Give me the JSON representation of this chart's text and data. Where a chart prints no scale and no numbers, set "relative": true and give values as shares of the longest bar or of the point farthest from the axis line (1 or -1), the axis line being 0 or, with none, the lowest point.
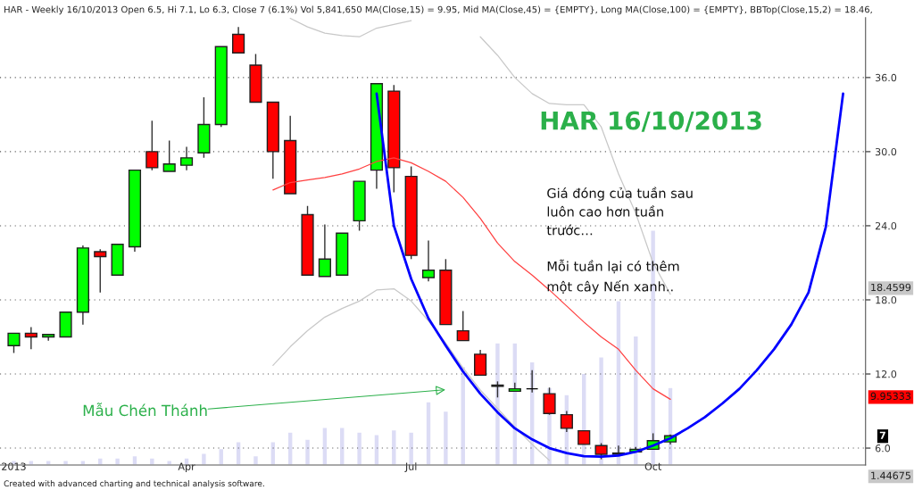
{
  "chart_data": [
    {
      "type": "candlestick",
      "title": "HAR - Weekly 16/10/2013 Open 6.5, Hi 7.1, Lo 6.3, Close 7 (6.1%) Vol 5,841,650 MA(Close,15) = 9.95, Mid MA(Close,45) = {EMPTY}, Long MA(Close,100) = {EMPTY}, BBTop(Close,15,2) = 18.46,",
      "categories": [
        "2013",
        null,
        null,
        null,
        null,
        null,
        null,
        null,
        null,
        null,
        "Apr",
        null,
        null,
        null,
        null,
        null,
        null,
        null,
        null,
        null,
        null,
        null,
        null,
        "Jul",
        null,
        null,
        null,
        null,
        null,
        null,
        null,
        null,
        null,
        null,
        null,
        null,
        null,
        "Oct",
        null,
        null,
        null,
        null,
        null,
        null,
        null,
        null,
        null,
        null,
        null
      ],
      "ohlc": [
        [
          14.3,
          15.3,
          13.7,
          15.3
        ],
        [
          15.3,
          15.8,
          14.0,
          15.0
        ],
        [
          15.0,
          15.2,
          14.7,
          15.2
        ],
        [
          15.0,
          17.0,
          15.0,
          17.0
        ],
        [
          17.0,
          22.4,
          16.0,
          22.2
        ],
        [
          21.9,
          22.1,
          18.6,
          21.5
        ],
        [
          20.0,
          22.5,
          20.0,
          22.5
        ],
        [
          22.3,
          28.5,
          21.9,
          28.5
        ],
        [
          30.0,
          32.5,
          28.5,
          28.7
        ],
        [
          28.4,
          30.9,
          28.4,
          29.0
        ],
        [
          28.9,
          30.4,
          28.5,
          29.5
        ],
        [
          29.9,
          34.4,
          29.5,
          32.2
        ],
        [
          32.2,
          38.5,
          32.0,
          38.5
        ],
        [
          39.5,
          40.1,
          38.0,
          38.0
        ],
        [
          37.0,
          37.9,
          34.0,
          34.0
        ],
        [
          34.0,
          34.0,
          27.8,
          30.0
        ],
        [
          30.9,
          32.9,
          26.6,
          26.6
        ],
        [
          24.9,
          25.6,
          20.0,
          20.0
        ],
        [
          19.9,
          24.1,
          19.9,
          21.3
        ],
        [
          20.0,
          23.4,
          20.0,
          23.4
        ],
        [
          24.4,
          27.6,
          23.6,
          27.6
        ],
        [
          28.5,
          35.5,
          27.0,
          35.5
        ],
        [
          34.9,
          35.4,
          26.7,
          28.7
        ],
        [
          28.0,
          28.8,
          21.3,
          21.6
        ],
        [
          19.8,
          22.8,
          19.5,
          20.4
        ],
        [
          20.4,
          21.3,
          16.0,
          16.0
        ],
        [
          15.5,
          17.1,
          14.7,
          14.7
        ],
        [
          13.6,
          13.95,
          11.9,
          11.9
        ],
        [
          11.1,
          11.4,
          10.1,
          11.0
        ],
        [
          10.6,
          11.3,
          10.6,
          10.8
        ],
        [
          10.8,
          12.3,
          10.5,
          10.8
        ],
        [
          10.4,
          10.9,
          8.7,
          8.8
        ],
        [
          8.7,
          9.0,
          7.3,
          7.6
        ],
        [
          7.4,
          7.4,
          6.3,
          6.3
        ],
        [
          6.2,
          6.4,
          5.1,
          5.5
        ],
        [
          5.5,
          6.2,
          5.5,
          5.6
        ],
        [
          5.7,
          6.1,
          5.7,
          5.9
        ],
        [
          5.9,
          7.2,
          5.9,
          6.6
        ],
        [
          6.5,
          7.1,
          6.3,
          7.0
        ],
        null,
        null,
        null,
        null,
        null,
        null,
        null,
        null,
        null,
        null
      ],
      "colors": [
        "#00ff00",
        "#ff0000",
        "#00ff00",
        "#00ff00",
        "#00ff00",
        "#ff0000",
        "#00ff00",
        "#00ff00",
        "#ff0000",
        "#00ff00",
        "#00ff00",
        "#00ff00",
        "#00ff00",
        "#ff0000",
        "#ff0000",
        "#ff0000",
        "#ff0000",
        "#ff0000",
        "#00ff00",
        "#00ff00",
        "#00ff00",
        "#00ff00",
        "#ff0000",
        "#ff0000",
        "#00ff00",
        "#ff0000",
        "#ff0000",
        "#ff0000",
        "#ff0000",
        "#00ff00",
        "#000000",
        "#ff0000",
        "#ff0000",
        "#ff0000",
        "#ff0000",
        "#00ff00",
        "#00ff00",
        "#00ff00",
        "#00ff00",
        null,
        null,
        null,
        null,
        null,
        null,
        null,
        null,
        null,
        null
      ],
      "series": [
        {
          "type": "line",
          "color": "#c8c8c8",
          "values": [
            null,
            null,
            null,
            null,
            null,
            null,
            null,
            null,
            null,
            null,
            null,
            null,
            null,
            null,
            null,
            null,
            40.8,
            40.1,
            39.6,
            39.4,
            39.3,
            40.0,
            40.3,
            40.6,
            null,
            null,
            null,
            39.3,
            37.8,
            36.0,
            34.7,
            33.9,
            33.8,
            33.8,
            32.0,
            28.2,
            25.0,
            21.0,
            18.46,
            null,
            null,
            null,
            null,
            null,
            null,
            null,
            null,
            null,
            null
          ]
        },
        {
          "type": "line",
          "color": "#c8c8c8",
          "values": [
            null,
            null,
            null,
            null,
            null,
            null,
            null,
            null,
            null,
            null,
            null,
            null,
            null,
            null,
            null,
            12.7,
            14.2,
            15.5,
            16.6,
            17.3,
            17.9,
            18.8,
            18.9,
            17.9,
            16.3,
            14.5,
            12.5,
            10.7,
            9.2,
            7.7,
            6.3,
            5.0,
            null,
            null,
            null,
            null,
            null,
            null,
            null,
            null,
            null,
            null,
            null,
            null,
            null,
            null,
            null,
            null,
            null
          ]
        },
        {
          "type": "line",
          "color": "#ff4040",
          "values": [
            null,
            null,
            null,
            null,
            null,
            null,
            null,
            null,
            null,
            null,
            null,
            null,
            null,
            null,
            null,
            26.9,
            27.5,
            27.7,
            27.9,
            28.2,
            28.6,
            29.2,
            29.5,
            29.1,
            28.4,
            27.6,
            26.3,
            24.6,
            22.6,
            21.1,
            20.0,
            18.8,
            17.5,
            16.2,
            15.0,
            14.0,
            12.3,
            10.8,
            9.95,
            null,
            null,
            null,
            null,
            null,
            null,
            null,
            null,
            null,
            null
          ]
        },
        {
          "type": "line",
          "color": "#0000ff",
          "values": [
            null,
            null,
            null,
            null,
            null,
            null,
            null,
            null,
            null,
            null,
            null,
            null,
            null,
            null,
            null,
            null,
            null,
            null,
            null,
            null,
            null,
            34.7,
            24.0,
            19.7,
            16.5,
            14.3,
            12.2,
            10.4,
            8.9,
            7.6,
            6.7,
            6.0,
            5.6,
            5.35,
            5.3,
            5.4,
            5.7,
            6.2,
            6.8,
            7.6,
            8.5,
            9.6,
            10.8,
            12.3,
            14.0,
            16.0,
            18.6,
            23.9,
            34.7
          ]
        }
      ],
      "ylim": [
        4.63,
        40.85
      ],
      "yticks": [
        {
          "value": 6,
          "label": "6.0"
        },
        {
          "value": 12,
          "label": "12.0"
        },
        {
          "value": 18,
          "label": "18.0"
        },
        {
          "value": 24,
          "label": "24.0"
        },
        {
          "value": 30,
          "label": "30.0"
        },
        {
          "value": 36,
          "label": "36.0"
        }
      ],
      "grid": "y",
      "annotations": [
        "HAR 16/10/2013",
        "Giá đóng của tuần sau\nluôn cao hơn tuần\ntrước…",
        "Mỗi tuần lại có thêm\nmột cây Nến xanh..",
        "Mẫu Chén Thánh",
        "18.4599",
        "9.95333",
        "7",
        "1.44675",
        "Created with advanced charting and technical analysis software."
      ]
    },
    {
      "type": "bar",
      "relative": true,
      "color": "#dcdcf5",
      "categories": [
        null,
        null,
        null,
        null,
        null,
        null,
        null,
        null,
        null,
        null,
        null,
        null,
        null,
        null,
        null,
        null,
        null,
        null,
        null,
        null,
        null,
        null,
        null,
        null,
        null,
        null,
        null,
        null,
        null,
        null,
        null,
        null,
        null,
        null,
        null,
        null,
        null,
        null,
        null,
        null,
        null,
        null,
        null,
        null,
        null,
        null,
        null,
        null,
        null
      ],
      "values": [
        0.02,
        0.02,
        0.02,
        0.02,
        0.02,
        0.03,
        0.03,
        0.04,
        0.03,
        0.02,
        0.03,
        0.05,
        0.07,
        0.1,
        0.04,
        0.1,
        0.14,
        0.11,
        0.16,
        0.16,
        0.14,
        0.13,
        0.15,
        0.14,
        0.27,
        0.23,
        0.42,
        null,
        0.52,
        0.52,
        0.44,
        0.33,
        0.3,
        0.39,
        0.46,
        0.7,
        0.55,
        1,
        0.33,
        null,
        null,
        null,
        null,
        null,
        null,
        null,
        null,
        null,
        null
      ]
    }
  ]
}
